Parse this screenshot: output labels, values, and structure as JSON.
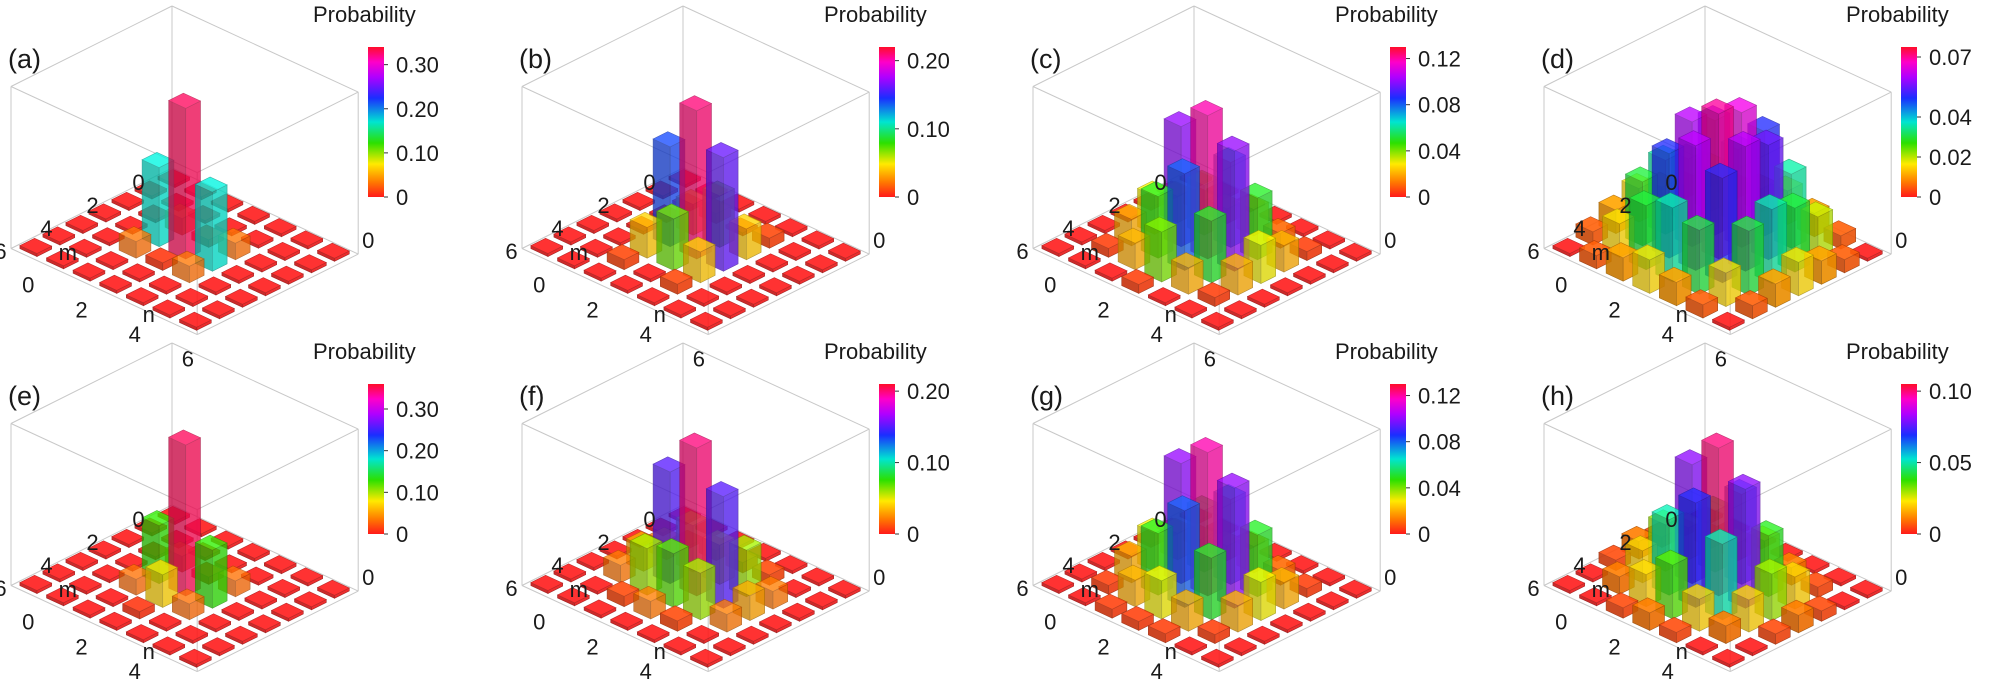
{
  "chart_data": [
    {
      "type": "bar3d",
      "panel_label": "(a)",
      "colorbar_title": "Probability",
      "colorbar_ticks": [
        "0.30",
        "0.20",
        "0.10",
        "0"
      ],
      "colorbar_tick_values": [
        0.3,
        0.2,
        0.1,
        0
      ],
      "colorbar_max": 0.34,
      "xlabel": "m",
      "ylabel": "n",
      "x_ticks": [
        "0",
        "2",
        "4",
        "6"
      ],
      "y_ticks": [
        "0",
        "2",
        "4",
        "6"
      ],
      "grid": [
        [
          0,
          0,
          0,
          0,
          0,
          0,
          0
        ],
        [
          0,
          0,
          0,
          0,
          0,
          0,
          0
        ],
        [
          0,
          0,
          0.03,
          0.01,
          0.03,
          0,
          0
        ],
        [
          0,
          0,
          0.17,
          0.33,
          0.17,
          0,
          0
        ],
        [
          0,
          0,
          0.03,
          0.01,
          0.03,
          0,
          0
        ],
        [
          0,
          0,
          0,
          0,
          0,
          0,
          0
        ],
        [
          0,
          0,
          0,
          0,
          0,
          0,
          0
        ]
      ]
    },
    {
      "type": "bar3d",
      "panel_label": "(b)",
      "colorbar_title": "Probability",
      "colorbar_ticks": [
        "0.20",
        "0.10",
        "0"
      ],
      "colorbar_tick_values": [
        0.2,
        0.1,
        0
      ],
      "colorbar_max": 0.22,
      "xlabel": "m",
      "ylabel": "n",
      "x_ticks": [
        "0",
        "2",
        "4",
        "6"
      ],
      "y_ticks": [
        "0",
        "2",
        "4",
        "6"
      ],
      "grid": [
        [
          0,
          0,
          0,
          0,
          0,
          0,
          0
        ],
        [
          0,
          0,
          0.01,
          0,
          0.01,
          0,
          0
        ],
        [
          0,
          0,
          0.04,
          0.07,
          0.04,
          0,
          0
        ],
        [
          0,
          0,
          0.14,
          0.21,
          0.16,
          0,
          0
        ],
        [
          0,
          0,
          0.04,
          0.07,
          0.04,
          0,
          0
        ],
        [
          0,
          0,
          0.01,
          0,
          0.01,
          0,
          0
        ],
        [
          0,
          0,
          0,
          0,
          0,
          0,
          0
        ]
      ]
    },
    {
      "type": "bar3d",
      "panel_label": "(c)",
      "colorbar_title": "Probability",
      "colorbar_ticks": [
        "0.12",
        "0.08",
        "0.04",
        "0"
      ],
      "colorbar_tick_values": [
        0.12,
        0.08,
        0.04,
        0
      ],
      "colorbar_max": 0.13,
      "xlabel": "m",
      "ylabel": "n",
      "x_ticks": [
        "0",
        "2",
        "4",
        "6"
      ],
      "y_ticks": [
        "0",
        "2",
        "4",
        "6"
      ],
      "grid": [
        [
          0,
          0,
          0,
          0,
          0,
          0,
          0
        ],
        [
          0,
          0.005,
          0.01,
          0.02,
          0.01,
          0.005,
          0
        ],
        [
          0,
          0.02,
          0.04,
          0.07,
          0.05,
          0.02,
          0
        ],
        [
          0,
          0.03,
          0.1,
          0.12,
          0.1,
          0.03,
          0
        ],
        [
          0,
          0.02,
          0.05,
          0.08,
          0.05,
          0.02,
          0
        ],
        [
          0,
          0.005,
          0.02,
          0.04,
          0.02,
          0.005,
          0
        ],
        [
          0,
          0,
          0,
          0.005,
          0,
          0,
          0
        ]
      ]
    },
    {
      "type": "bar3d",
      "panel_label": "(d)",
      "colorbar_title": "Probability",
      "colorbar_ticks": [
        "0.07",
        "0.04",
        "0.02",
        "0"
      ],
      "colorbar_tick_values": [
        0.07,
        0.04,
        0.02,
        0
      ],
      "colorbar_max": 0.075,
      "xlabel": "m",
      "ylabel": "n",
      "x_ticks": [
        "0",
        "2",
        "4",
        "6"
      ],
      "y_ticks": [
        "0",
        "2",
        "4",
        "6"
      ],
      "grid": [
        [
          0,
          0.005,
          0.01,
          0.015,
          0.01,
          0.005,
          0
        ],
        [
          0.005,
          0.02,
          0.035,
          0.05,
          0.035,
          0.02,
          0.005
        ],
        [
          0.01,
          0.03,
          0.055,
          0.065,
          0.055,
          0.03,
          0.01
        ],
        [
          0.015,
          0.035,
          0.06,
          0.07,
          0.06,
          0.035,
          0.015
        ],
        [
          0.01,
          0.03,
          0.05,
          0.06,
          0.05,
          0.03,
          0.01
        ],
        [
          0.005,
          0.015,
          0.03,
          0.035,
          0.03,
          0.015,
          0.005
        ],
        [
          0,
          0.005,
          0.01,
          0.015,
          0.01,
          0.005,
          0
        ]
      ]
    },
    {
      "type": "bar3d",
      "panel_label": "(e)",
      "colorbar_title": "Probability",
      "colorbar_ticks": [
        "0.30",
        "0.20",
        "0.10",
        "0"
      ],
      "colorbar_tick_values": [
        0.3,
        0.2,
        0.1,
        0
      ],
      "colorbar_max": 0.36,
      "xlabel": "m",
      "ylabel": "n",
      "x_ticks": [
        "0",
        "2",
        "4",
        "6"
      ],
      "y_ticks": [
        "0",
        "2",
        "4",
        "6"
      ],
      "grid": [
        [
          0,
          0,
          0,
          0,
          0,
          0,
          0
        ],
        [
          0,
          0,
          0,
          0,
          0,
          0,
          0
        ],
        [
          0,
          0,
          0.03,
          0.01,
          0.03,
          0,
          0
        ],
        [
          0,
          0,
          0.13,
          0.35,
          0.13,
          0,
          0
        ],
        [
          0,
          0,
          0.03,
          0.07,
          0.03,
          0,
          0
        ],
        [
          0,
          0,
          0,
          0.01,
          0,
          0,
          0
        ],
        [
          0,
          0,
          0,
          0,
          0,
          0,
          0
        ]
      ]
    },
    {
      "type": "bar3d",
      "panel_label": "(f)",
      "colorbar_title": "Probability",
      "colorbar_ticks": [
        "0.20",
        "0.10",
        "0"
      ],
      "colorbar_tick_values": [
        0.2,
        0.1,
        0
      ],
      "colorbar_max": 0.21,
      "xlabel": "m",
      "ylabel": "n",
      "x_ticks": [
        "0",
        "2",
        "4",
        "6"
      ],
      "y_ticks": [
        "0",
        "2",
        "4",
        "6"
      ],
      "grid": [
        [
          0,
          0,
          0,
          0,
          0,
          0,
          0
        ],
        [
          0,
          0,
          0.01,
          0.01,
          0.01,
          0,
          0
        ],
        [
          0,
          0.02,
          0.06,
          0.05,
          0.06,
          0.02,
          0
        ],
        [
          0,
          0.03,
          0.15,
          0.2,
          0.15,
          0.03,
          0
        ],
        [
          0,
          0.02,
          0.06,
          0.07,
          0.06,
          0.02,
          0
        ],
        [
          0,
          0,
          0.01,
          0.02,
          0.01,
          0,
          0
        ],
        [
          0,
          0,
          0,
          0,
          0,
          0,
          0
        ]
      ]
    },
    {
      "type": "bar3d",
      "panel_label": "(g)",
      "colorbar_title": "Probability",
      "colorbar_ticks": [
        "0.12",
        "0.08",
        "0.04",
        "0"
      ],
      "colorbar_tick_values": [
        0.12,
        0.08,
        0.04,
        0
      ],
      "colorbar_max": 0.13,
      "xlabel": "m",
      "ylabel": "n",
      "x_ticks": [
        "0",
        "2",
        "4",
        "6"
      ],
      "y_ticks": [
        "0",
        "2",
        "4",
        "6"
      ],
      "grid": [
        [
          0,
          0,
          0,
          0,
          0,
          0,
          0
        ],
        [
          0,
          0.005,
          0.01,
          0.02,
          0.01,
          0.005,
          0
        ],
        [
          0,
          0.02,
          0.05,
          0.07,
          0.05,
          0.02,
          0
        ],
        [
          0,
          0.03,
          0.1,
          0.12,
          0.1,
          0.03,
          0
        ],
        [
          0,
          0.02,
          0.05,
          0.08,
          0.05,
          0.02,
          0
        ],
        [
          0,
          0.005,
          0.02,
          0.03,
          0.02,
          0.005,
          0
        ],
        [
          0,
          0,
          0.005,
          0.005,
          0.005,
          0,
          0
        ]
      ]
    },
    {
      "type": "bar3d",
      "panel_label": "(h)",
      "colorbar_title": "Probability",
      "colorbar_ticks": [
        "0.10",
        "0.05",
        "0"
      ],
      "colorbar_tick_values": [
        0.1,
        0.05,
        0
      ],
      "colorbar_max": 0.105,
      "xlabel": "m",
      "ylabel": "n",
      "x_ticks": [
        "0",
        "2",
        "4",
        "6"
      ],
      "y_ticks": [
        "0",
        "2",
        "4",
        "6"
      ],
      "grid": [
        [
          0,
          0,
          0,
          0,
          0,
          0,
          0
        ],
        [
          0,
          0.005,
          0.01,
          0.02,
          0.01,
          0.005,
          0
        ],
        [
          0.005,
          0.02,
          0.04,
          0.06,
          0.04,
          0.02,
          0.005
        ],
        [
          0.01,
          0.03,
          0.08,
          0.1,
          0.08,
          0.03,
          0.01
        ],
        [
          0.005,
          0.02,
          0.05,
          0.07,
          0.05,
          0.02,
          0.005
        ],
        [
          0,
          0.01,
          0.02,
          0.035,
          0.02,
          0.01,
          0
        ],
        [
          0,
          0,
          0.005,
          0.01,
          0.005,
          0,
          0
        ]
      ]
    }
  ]
}
